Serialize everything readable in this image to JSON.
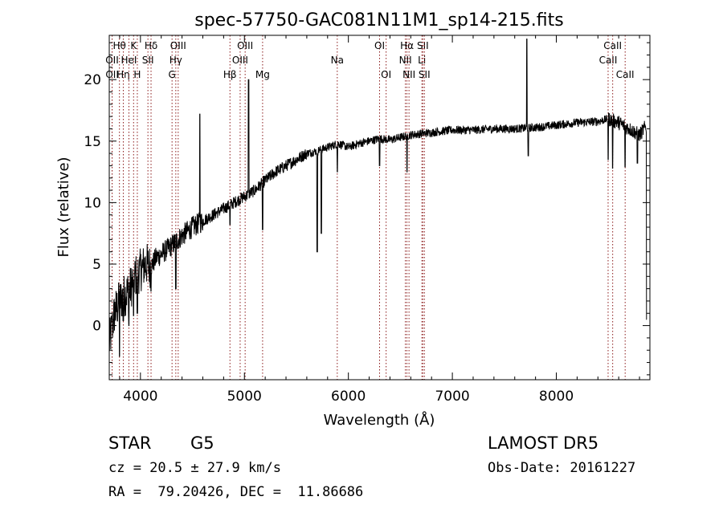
{
  "chart_data": {
    "type": "line",
    "title": "spec-57750-GAC081N11M1_sp14-215.fits",
    "xlabel": "Wavelength (Å)",
    "ylabel": "Flux (relative)",
    "xlim": [
      3700,
      8900
    ],
    "ylim": [
      -4.4,
      23.6
    ],
    "xticks": [
      4000,
      5000,
      6000,
      7000,
      8000
    ],
    "yticks": [
      0,
      5,
      10,
      15,
      20
    ],
    "grid": false,
    "line_color": "#000000",
    "marker_color": "#8b1a1a",
    "spectrum_anchors": {
      "x": [
        3700,
        3750,
        3800,
        3850,
        3900,
        3950,
        4000,
        4050,
        4100,
        4150,
        4200,
        4300,
        4400,
        4500,
        4600,
        4700,
        4800,
        4900,
        5000,
        5100,
        5200,
        5300,
        5400,
        5500,
        5600,
        5700,
        5800,
        5900,
        6000,
        6100,
        6200,
        6300,
        6400,
        6500,
        6600,
        6700,
        6800,
        6900,
        7000,
        7200,
        7400,
        7600,
        7800,
        8000,
        8200,
        8400,
        8500,
        8600,
        8700,
        8800,
        8860
      ],
      "y": [
        -1.5,
        1.0,
        2.0,
        2.5,
        3.0,
        4.0,
        4.5,
        5.0,
        4.8,
        5.5,
        5.8,
        6.5,
        7.3,
        8.0,
        8.5,
        9.0,
        9.5,
        10.0,
        10.5,
        11.0,
        11.8,
        12.5,
        13.0,
        13.5,
        14.0,
        14.2,
        14.5,
        14.8,
        14.5,
        14.8,
        15.0,
        15.2,
        15.1,
        15.3,
        15.5,
        15.6,
        15.7,
        15.8,
        15.9,
        15.9,
        16.0,
        16.0,
        16.1,
        16.3,
        16.5,
        16.6,
        16.8,
        16.5,
        16.0,
        15.5,
        16.2
      ]
    },
    "spectral_features": [
      {
        "x": 3727,
        "y": 0.6
      },
      {
        "x": 3798,
        "y": -2.5
      },
      {
        "x": 3835,
        "y": 0.4
      },
      {
        "x": 3889,
        "y": 0.0
      },
      {
        "x": 3934,
        "y": 0.8
      },
      {
        "x": 3970,
        "y": 1.0
      },
      {
        "x": 4102,
        "y": 2.8
      },
      {
        "x": 4340,
        "y": 3.0
      },
      {
        "x": 4571,
        "y": 17.2
      },
      {
        "x": 4861,
        "y": 8.2
      },
      {
        "x": 5040,
        "y": 20.0
      },
      {
        "x": 5175,
        "y": 7.8
      },
      {
        "x": 5700,
        "y": 6.0
      },
      {
        "x": 5740,
        "y": 7.5
      },
      {
        "x": 5893,
        "y": 12.5
      },
      {
        "x": 6300,
        "y": 13.0
      },
      {
        "x": 6563,
        "y": 12.5
      },
      {
        "x": 7716,
        "y": 23.3
      },
      {
        "x": 7730,
        "y": 13.8
      },
      {
        "x": 8498,
        "y": 13.5
      },
      {
        "x": 8542,
        "y": 12.8
      },
      {
        "x": 8662,
        "y": 12.9
      },
      {
        "x": 8780,
        "y": 13.2
      },
      {
        "x": 8870,
        "y": 0.5
      }
    ],
    "line_markers": [
      {
        "x": 3727,
        "row": 1,
        "label": "OII"
      },
      {
        "x": 3728,
        "row": 2,
        "label": "OII"
      },
      {
        "x": 3798,
        "row": 0,
        "label": "Hθ"
      },
      {
        "x": 3835,
        "row": 2,
        "label": "Hη"
      },
      {
        "x": 3889,
        "row": 1,
        "label": "HeI"
      },
      {
        "x": 3934,
        "row": 0,
        "label": "K"
      },
      {
        "x": 3970,
        "row": 2,
        "label": "H"
      },
      {
        "x": 4072,
        "row": 1,
        "label": "SII"
      },
      {
        "x": 4102,
        "row": 0,
        "label": "Hδ"
      },
      {
        "x": 4304,
        "row": 2,
        "label": "G"
      },
      {
        "x": 4340,
        "row": 1,
        "label": "Hγ"
      },
      {
        "x": 4363,
        "row": 0,
        "label": "OIII"
      },
      {
        "x": 4861,
        "row": 2,
        "label": "Hβ"
      },
      {
        "x": 4959,
        "row": 1,
        "label": "OIII"
      },
      {
        "x": 5007,
        "row": 0,
        "label": "OIII"
      },
      {
        "x": 5175,
        "row": 2,
        "label": "Mg"
      },
      {
        "x": 5893,
        "row": 1,
        "label": "Na"
      },
      {
        "x": 6300,
        "row": 0,
        "label": "OI"
      },
      {
        "x": 6363,
        "row": 2,
        "label": "OI"
      },
      {
        "x": 6548,
        "row": 1,
        "label": "NII"
      },
      {
        "x": 6563,
        "row": 0,
        "label": "Hα"
      },
      {
        "x": 6583,
        "row": 2,
        "label": "NII"
      },
      {
        "x": 6707,
        "row": 1,
        "label": "Li"
      },
      {
        "x": 6716,
        "row": 0,
        "label": "SII"
      },
      {
        "x": 6731,
        "row": 2,
        "label": "SII"
      },
      {
        "x": 8498,
        "row": 1,
        "label": "CaII"
      },
      {
        "x": 8542,
        "row": 0,
        "label": "CaII"
      },
      {
        "x": 8662,
        "row": 2,
        "label": "CaII"
      }
    ]
  },
  "info": {
    "class": "STAR",
    "subclass": "G5",
    "survey": "LAMOST DR5",
    "cz": "cz = 20.5 ± 27.9 km/s",
    "obs_date": "Obs-Date: 20161227",
    "coords": "RA =  79.20426, DEC =  11.86686"
  }
}
